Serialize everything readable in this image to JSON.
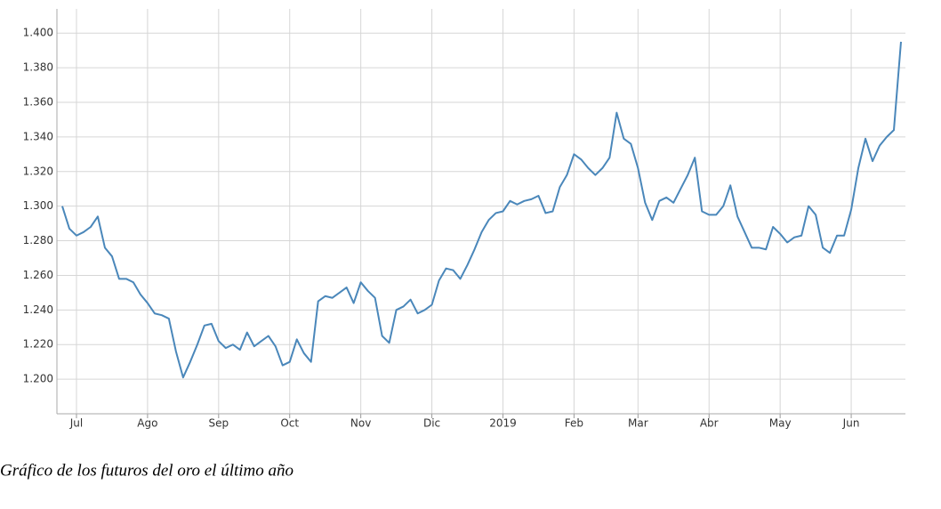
{
  "chart_data": {
    "type": "line",
    "categories": [
      null,
      null,
      "Jul",
      null,
      null,
      null,
      null,
      null,
      null,
      null,
      null,
      null,
      "Ago",
      null,
      null,
      null,
      null,
      null,
      null,
      null,
      null,
      null,
      "Sep",
      null,
      null,
      null,
      null,
      null,
      null,
      null,
      null,
      null,
      "Oct",
      null,
      null,
      null,
      null,
      null,
      null,
      null,
      null,
      null,
      "Nov",
      null,
      null,
      null,
      null,
      null,
      null,
      null,
      null,
      null,
      "Dic",
      null,
      null,
      null,
      null,
      null,
      null,
      null,
      null,
      null,
      "2019",
      null,
      null,
      null,
      null,
      null,
      null,
      null,
      null,
      null,
      "Feb",
      null,
      null,
      null,
      null,
      null,
      null,
      null,
      null,
      "Mar",
      null,
      null,
      null,
      null,
      null,
      null,
      null,
      null,
      null,
      "Abr",
      null,
      null,
      null,
      null,
      null,
      null,
      null,
      null,
      null,
      "May",
      null,
      null,
      null,
      null,
      null,
      null,
      null,
      null,
      null,
      "Jun",
      null,
      null,
      null,
      null,
      null,
      null,
      null
    ],
    "values": [
      1300,
      1287,
      1283,
      1285,
      1288,
      1294,
      1276,
      1271,
      1258,
      1258,
      1256,
      1249,
      1244,
      1238,
      1237,
      1235,
      1216,
      1201,
      1210,
      1220,
      1231,
      1232,
      1222,
      1218,
      1220,
      1217,
      1227,
      1219,
      1222,
      1225,
      1219,
      1208,
      1210,
      1223,
      1215,
      1210,
      1245,
      1248,
      1247,
      1250,
      1253,
      1244,
      1256,
      1251,
      1247,
      1225,
      1221,
      1240,
      1242,
      1246,
      1238,
      1240,
      1243,
      1257,
      1264,
      1263,
      1258,
      1266,
      1275,
      1285,
      1292,
      1296,
      1297,
      1303,
      1301,
      1303,
      1304,
      1306,
      1296,
      1297,
      1311,
      1318,
      1330,
      1327,
      1322,
      1318,
      1322,
      1328,
      1354,
      1339,
      1336,
      1322,
      1302,
      1292,
      1303,
      1305,
      1302,
      1310,
      1318,
      1328,
      1297,
      1295,
      1295,
      1300,
      1312,
      1294,
      1285,
      1276,
      1276,
      1275,
      1288,
      1284,
      1279,
      1282,
      1283,
      1300,
      1295,
      1276,
      1273,
      1283,
      1283,
      1298,
      1322,
      1339,
      1326,
      1335,
      1340,
      1344,
      1395
    ],
    "color": "#4a87ba",
    "ylim": [
      1180,
      1414
    ],
    "yticks": [
      {
        "value": 1200,
        "label": "1.200"
      },
      {
        "value": 1220,
        "label": "1.220"
      },
      {
        "value": 1240,
        "label": "1.240"
      },
      {
        "value": 1260,
        "label": "1.260"
      },
      {
        "value": 1280,
        "label": "1.280"
      },
      {
        "value": 1300,
        "label": "1.300"
      },
      {
        "value": 1320,
        "label": "1.320"
      },
      {
        "value": 1340,
        "label": "1.340"
      },
      {
        "value": 1360,
        "label": "1.360"
      },
      {
        "value": 1380,
        "label": "1.380"
      },
      {
        "value": 1400,
        "label": "1.400"
      }
    ],
    "grid": true
  },
  "caption": "Gráfico de los futuros del oro el último año"
}
